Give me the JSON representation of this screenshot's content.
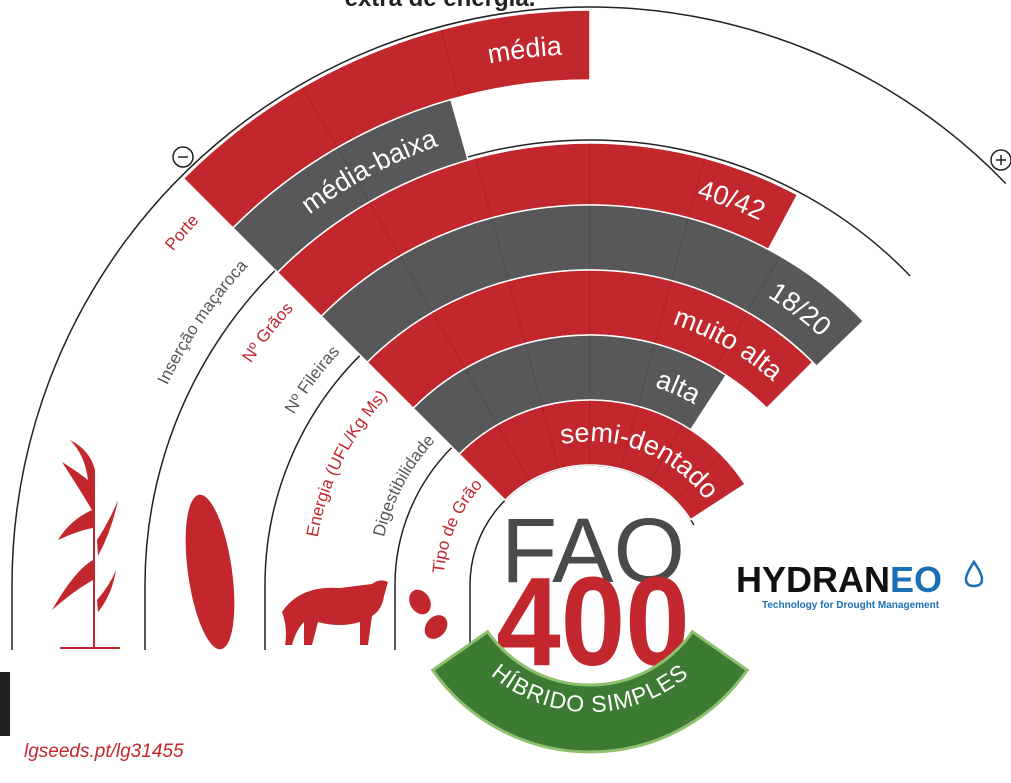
{
  "header": {
    "title": "extra de energia."
  },
  "rings": [
    {
      "label": "Porte",
      "value": "média",
      "color": "#c1272d"
    },
    {
      "label": "Inserção maçaroca",
      "value": "média-baixa",
      "color": "#58585a"
    },
    {
      "label": "Nº Grãos",
      "value": "40/42",
      "color": "#c1272d"
    },
    {
      "label": "Nº Fileiras",
      "value": "18/20",
      "color": "#58585a"
    },
    {
      "label": "Energia (UFL/Kg Ms)",
      "value": "muito alta",
      "color": "#c1272d"
    },
    {
      "label": "Digestibilidade",
      "value": "alta",
      "color": "#58585a"
    },
    {
      "label": "Tipo de Grão",
      "value": "semi-dentado",
      "color": "#c1272d"
    }
  ],
  "fao": {
    "label": "FAO",
    "number": "400"
  },
  "badge": "HÍBRIDO SIMPLES",
  "logo": {
    "name_a": "HYDRAN",
    "name_b": "EO",
    "tagline": "Technology for Drought Management"
  },
  "link": "lgseeds.pt/lg31455"
}
